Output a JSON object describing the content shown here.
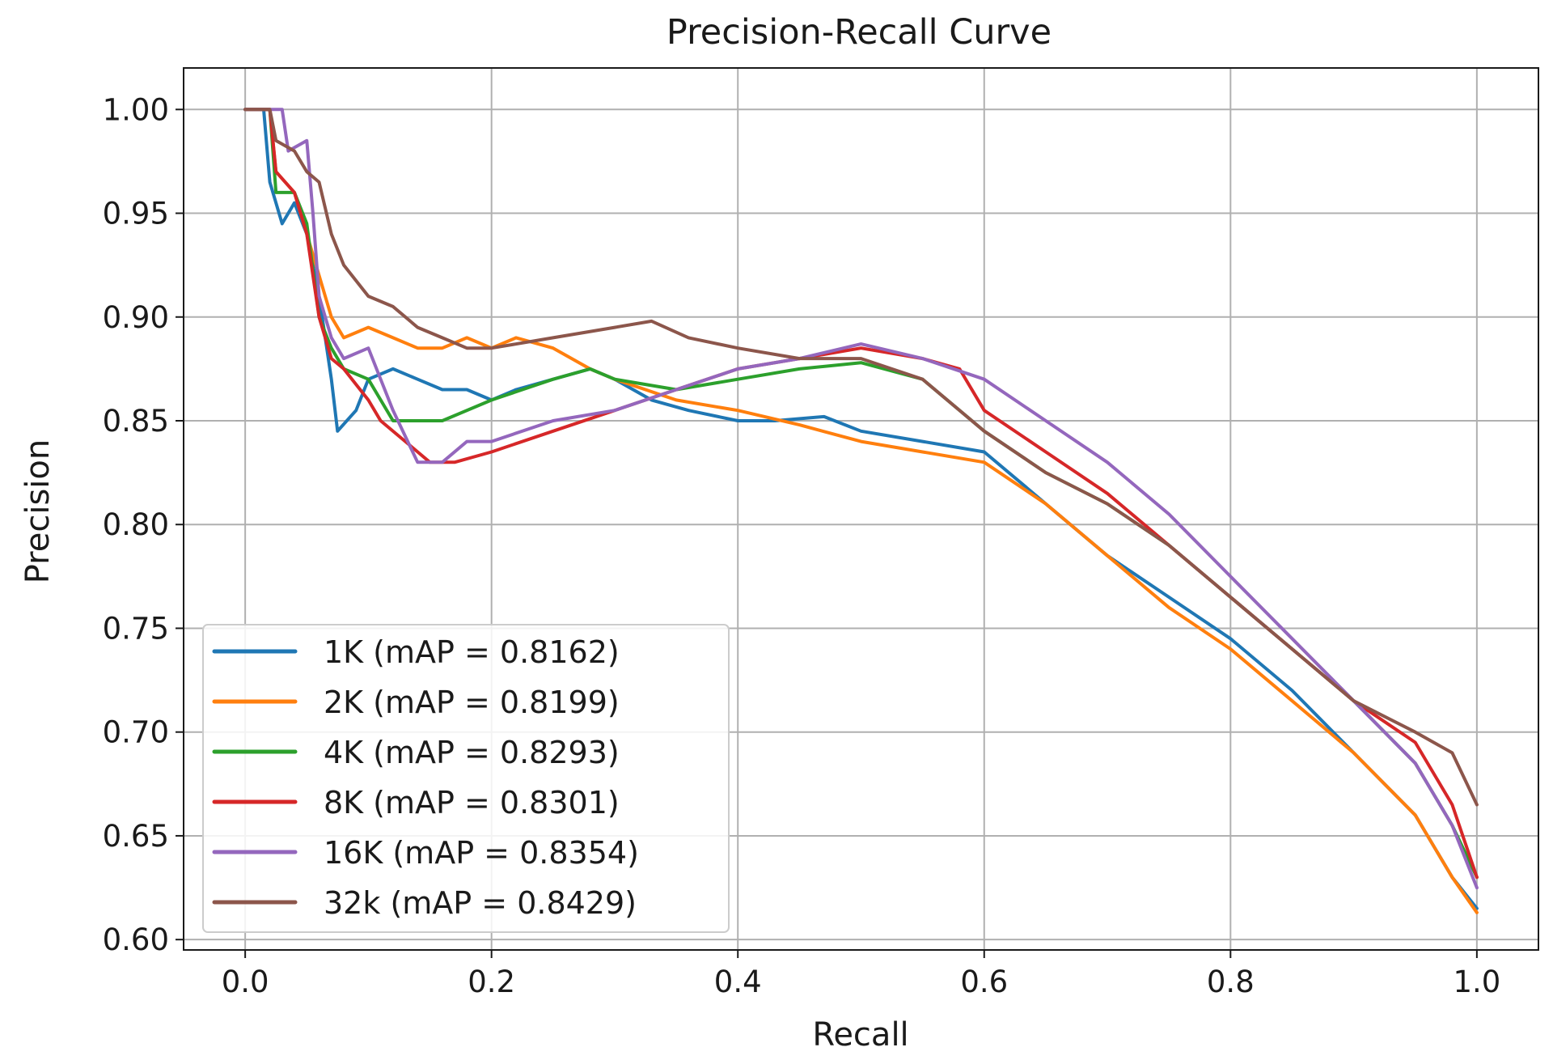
{
  "chart_data": {
    "type": "line",
    "title": "Precision-Recall Curve",
    "xlabel": "Recall",
    "ylabel": "Precision",
    "xlim": [
      -0.05,
      1.05
    ],
    "ylim": [
      0.595,
      1.02
    ],
    "grid": true,
    "legend_position": "lower-left",
    "x_ticks": [
      0.0,
      0.2,
      0.4,
      0.6,
      0.8,
      1.0
    ],
    "x_tick_labels": [
      "0.0",
      "0.2",
      "0.4",
      "0.6",
      "0.8",
      "1.0"
    ],
    "y_ticks": [
      0.6,
      0.65,
      0.7,
      0.75,
      0.8,
      0.85,
      0.9,
      0.95,
      1.0
    ],
    "y_tick_labels": [
      "0.60",
      "0.65",
      "0.70",
      "0.75",
      "0.80",
      "0.85",
      "0.90",
      "0.95",
      "1.00"
    ],
    "series": [
      {
        "name": "1K",
        "label": "1K (mAP = 0.8162)",
        "color": "#1f77b4",
        "x": [
          0.0,
          0.015,
          0.02,
          0.03,
          0.04,
          0.05,
          0.06,
          0.07,
          0.075,
          0.09,
          0.1,
          0.12,
          0.14,
          0.16,
          0.18,
          0.2,
          0.22,
          0.25,
          0.28,
          0.3,
          0.33,
          0.36,
          0.4,
          0.43,
          0.47,
          0.5,
          0.55,
          0.6,
          0.65,
          0.7,
          0.75,
          0.8,
          0.85,
          0.9,
          0.95,
          0.98,
          1.0
        ],
        "y": [
          1.0,
          1.0,
          0.965,
          0.945,
          0.955,
          0.94,
          0.91,
          0.87,
          0.845,
          0.855,
          0.87,
          0.875,
          0.87,
          0.865,
          0.865,
          0.86,
          0.865,
          0.87,
          0.875,
          0.87,
          0.86,
          0.855,
          0.85,
          0.85,
          0.852,
          0.845,
          0.84,
          0.835,
          0.81,
          0.785,
          0.765,
          0.745,
          0.72,
          0.69,
          0.66,
          0.63,
          0.615
        ]
      },
      {
        "name": "2K",
        "label": "2K (mAP = 0.8199)",
        "color": "#ff7f0e",
        "x": [
          0.0,
          0.02,
          0.025,
          0.04,
          0.05,
          0.06,
          0.07,
          0.08,
          0.1,
          0.12,
          0.14,
          0.16,
          0.18,
          0.2,
          0.22,
          0.25,
          0.28,
          0.3,
          0.35,
          0.4,
          0.45,
          0.5,
          0.55,
          0.6,
          0.65,
          0.7,
          0.75,
          0.8,
          0.85,
          0.9,
          0.95,
          0.98,
          1.0
        ],
        "y": [
          1.0,
          1.0,
          0.97,
          0.96,
          0.94,
          0.92,
          0.9,
          0.89,
          0.895,
          0.89,
          0.885,
          0.885,
          0.89,
          0.885,
          0.89,
          0.885,
          0.875,
          0.87,
          0.86,
          0.855,
          0.848,
          0.84,
          0.835,
          0.83,
          0.81,
          0.785,
          0.76,
          0.74,
          0.715,
          0.69,
          0.66,
          0.63,
          0.613
        ]
      },
      {
        "name": "4K",
        "label": "4K (mAP = 0.8293)",
        "color": "#2ca02c",
        "x": [
          0.0,
          0.02,
          0.025,
          0.04,
          0.05,
          0.06,
          0.07,
          0.08,
          0.1,
          0.12,
          0.14,
          0.16,
          0.2,
          0.25,
          0.28,
          0.3,
          0.35,
          0.4,
          0.45,
          0.5,
          0.55,
          0.6,
          0.65,
          0.7,
          0.75,
          0.8,
          0.85,
          0.9,
          0.95,
          0.98,
          1.0
        ],
        "y": [
          1.0,
          1.0,
          0.96,
          0.96,
          0.945,
          0.9,
          0.885,
          0.875,
          0.87,
          0.85,
          0.85,
          0.85,
          0.86,
          0.87,
          0.875,
          0.87,
          0.865,
          0.87,
          0.875,
          0.878,
          0.87,
          0.845,
          0.825,
          0.81,
          0.79,
          0.765,
          0.74,
          0.715,
          0.685,
          0.655,
          0.63
        ]
      },
      {
        "name": "8K",
        "label": "8K (mAP = 0.8301)",
        "color": "#d62728",
        "x": [
          0.0,
          0.02,
          0.025,
          0.04,
          0.05,
          0.06,
          0.07,
          0.08,
          0.1,
          0.11,
          0.13,
          0.15,
          0.17,
          0.2,
          0.25,
          0.3,
          0.35,
          0.4,
          0.45,
          0.5,
          0.55,
          0.58,
          0.6,
          0.65,
          0.7,
          0.75,
          0.8,
          0.85,
          0.9,
          0.95,
          0.98,
          1.0
        ],
        "y": [
          1.0,
          1.0,
          0.97,
          0.96,
          0.94,
          0.9,
          0.88,
          0.875,
          0.86,
          0.85,
          0.84,
          0.83,
          0.83,
          0.835,
          0.845,
          0.855,
          0.865,
          0.875,
          0.88,
          0.885,
          0.88,
          0.875,
          0.855,
          0.835,
          0.815,
          0.79,
          0.765,
          0.74,
          0.715,
          0.695,
          0.665,
          0.63
        ]
      },
      {
        "name": "16K",
        "label": "16K (mAP = 0.8354)",
        "color": "#9467bd",
        "x": [
          0.0,
          0.03,
          0.035,
          0.05,
          0.055,
          0.06,
          0.07,
          0.08,
          0.1,
          0.11,
          0.12,
          0.14,
          0.16,
          0.18,
          0.2,
          0.25,
          0.3,
          0.35,
          0.4,
          0.45,
          0.5,
          0.55,
          0.6,
          0.65,
          0.7,
          0.75,
          0.8,
          0.85,
          0.9,
          0.95,
          0.98,
          1.0
        ],
        "y": [
          1.0,
          1.0,
          0.98,
          0.985,
          0.95,
          0.91,
          0.89,
          0.88,
          0.885,
          0.87,
          0.855,
          0.83,
          0.83,
          0.84,
          0.84,
          0.85,
          0.855,
          0.865,
          0.875,
          0.88,
          0.887,
          0.88,
          0.87,
          0.85,
          0.83,
          0.805,
          0.775,
          0.745,
          0.715,
          0.685,
          0.655,
          0.625
        ]
      },
      {
        "name": "32k",
        "label": "32k (mAP = 0.8429)",
        "color": "#8c564b",
        "x": [
          0.0,
          0.02,
          0.025,
          0.04,
          0.05,
          0.06,
          0.07,
          0.08,
          0.1,
          0.12,
          0.14,
          0.16,
          0.18,
          0.2,
          0.25,
          0.3,
          0.33,
          0.36,
          0.4,
          0.45,
          0.5,
          0.55,
          0.6,
          0.65,
          0.7,
          0.75,
          0.8,
          0.85,
          0.9,
          0.95,
          0.98,
          1.0
        ],
        "y": [
          1.0,
          1.0,
          0.985,
          0.98,
          0.97,
          0.965,
          0.94,
          0.925,
          0.91,
          0.905,
          0.895,
          0.89,
          0.885,
          0.885,
          0.89,
          0.895,
          0.898,
          0.89,
          0.885,
          0.88,
          0.88,
          0.87,
          0.845,
          0.825,
          0.81,
          0.79,
          0.765,
          0.74,
          0.715,
          0.7,
          0.69,
          0.665
        ]
      }
    ]
  }
}
